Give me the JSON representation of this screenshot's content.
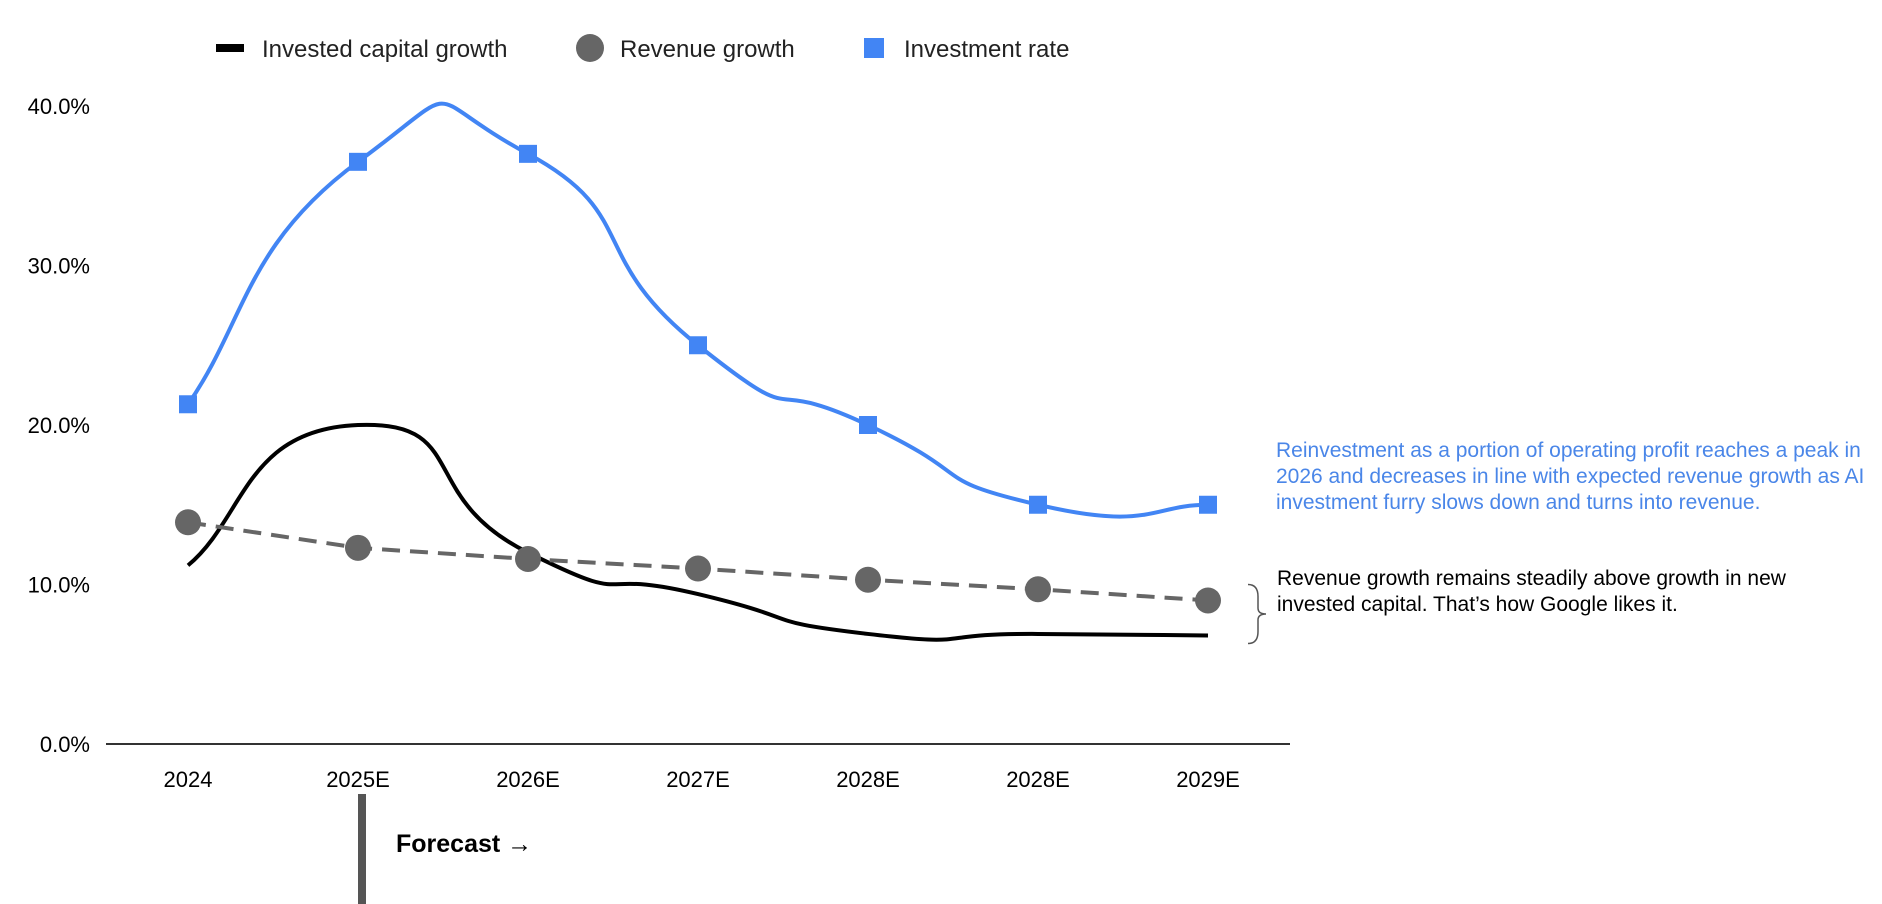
{
  "chart_data": {
    "type": "line",
    "title": "",
    "xlabel": "",
    "ylabel": "",
    "categories": [
      "2024",
      "2025E",
      "2026E",
      "2027E",
      "2028E",
      "2028E",
      "2029E"
    ],
    "ylim": [
      0,
      40
    ],
    "yticks": [
      "0.0%",
      "10.0%",
      "20.0%",
      "30.0%",
      "40.0%"
    ],
    "ytick_values": [
      0,
      10,
      20,
      30,
      40
    ],
    "grid": false,
    "legend_position": "top",
    "series": [
      {
        "name": "Invested capital growth",
        "style": "smooth-line",
        "color": "#000000",
        "values": [
          11.2,
          20.0,
          12.0,
          9.4,
          6.9,
          6.9,
          6.8
        ]
      },
      {
        "name": "Revenue growth",
        "style": "dashed-circles",
        "color": "#666666",
        "values": [
          13.9,
          12.3,
          11.6,
          11.0,
          10.3,
          9.7,
          9.0
        ]
      },
      {
        "name": "Investment rate",
        "style": "smooth-line-squares",
        "color": "#4285f4",
        "values": [
          21.3,
          36.5,
          37.0,
          25.0,
          20.0,
          15.0,
          15.0
        ]
      }
    ],
    "annotations": [
      "Reinvestment as a portion of operating profit reaches a peak in 2026 and decreases in line with expected revenue growth as AI investment furry slows down and turns into revenue.",
      "Revenue growth remains steadily above growth in new invested capital. That’s how Google likes it."
    ],
    "forecast_label": "Forecast →"
  }
}
